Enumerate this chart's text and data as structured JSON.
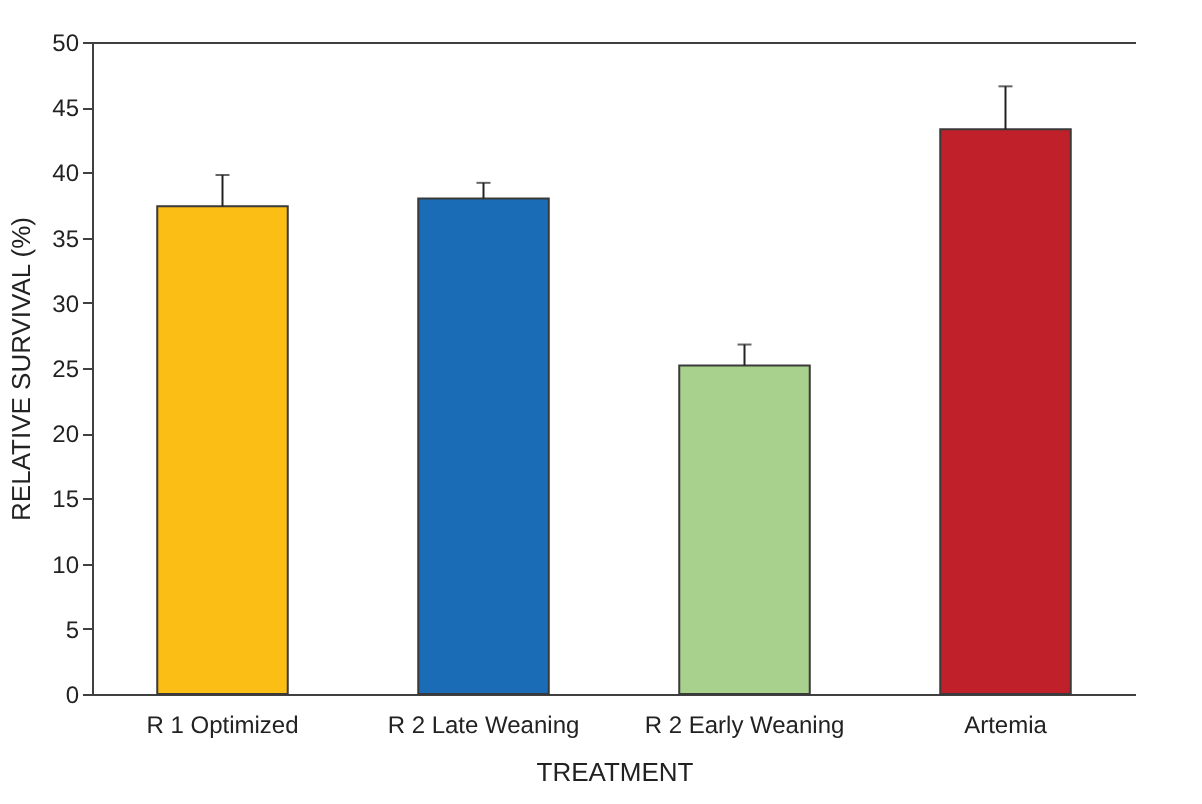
{
  "chart_data": {
    "type": "bar",
    "xlabel": "TREATMENT",
    "ylabel": "RELATIVE SURVIVAL (%)",
    "categories": [
      "R 1 Optimized",
      "R 2 Late Weaning",
      "R 2 Early Weaning",
      "Artemia"
    ],
    "values": [
      37.4,
      38.0,
      25.2,
      43.3
    ],
    "colors": [
      "#fbbe14",
      "#1a6cb7",
      "#a9d18e",
      "#c0202a"
    ],
    "errors": [
      [
        37.4,
        39.8
      ],
      [
        38.0,
        39.2
      ],
      [
        25.2,
        26.8
      ],
      [
        43.3,
        46.6
      ]
    ],
    "ylim": [
      0,
      50
    ],
    "yticks": [
      0,
      5,
      10,
      15,
      20,
      25,
      30,
      35,
      40,
      45,
      50
    ],
    "grid": false
  }
}
